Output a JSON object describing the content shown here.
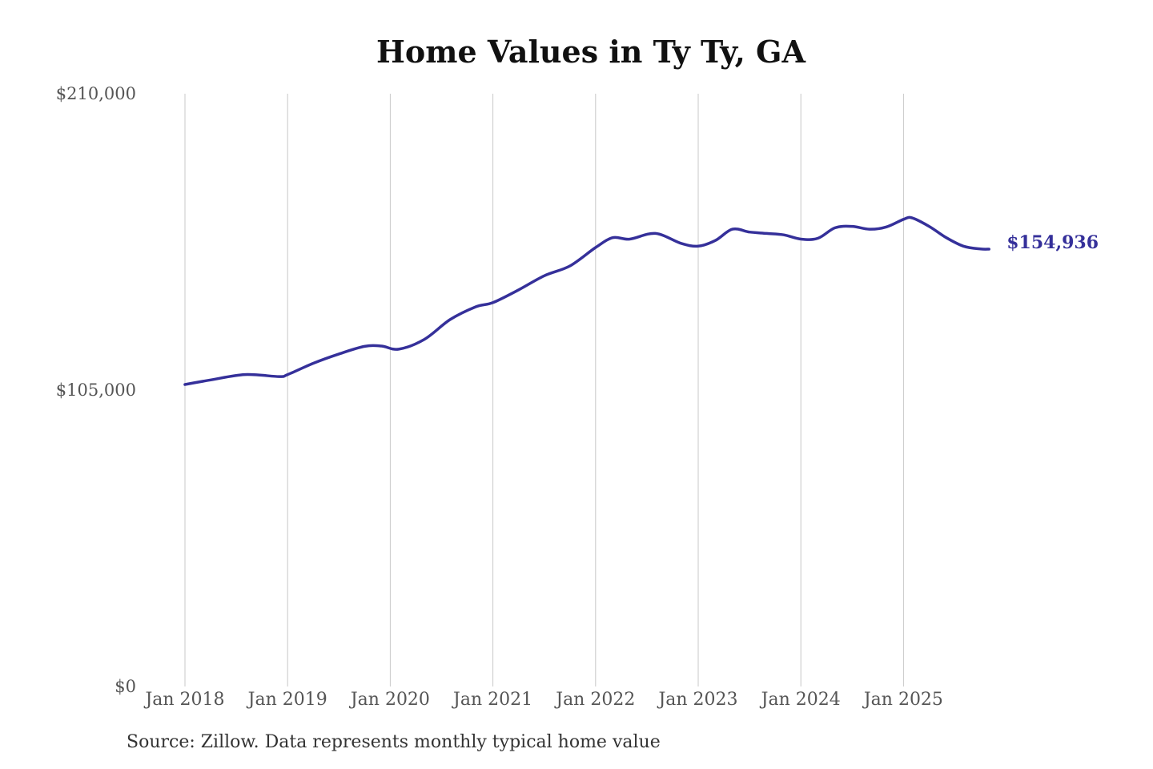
{
  "chart_data": {
    "type": "line",
    "title": "Home Values in Ty Ty, GA",
    "source": "Source: Zillow. Data represents monthly typical home value",
    "xlabel": "",
    "ylabel": "",
    "ylim": [
      0,
      210000
    ],
    "y_ticks": [
      {
        "value": 0,
        "label": "$0"
      },
      {
        "value": 105000,
        "label": "$105,000"
      },
      {
        "value": 210000,
        "label": "$210,000"
      }
    ],
    "x_ticks": [
      {
        "value": "2018-01",
        "label": "Jan 2018"
      },
      {
        "value": "2019-01",
        "label": "Jan 2019"
      },
      {
        "value": "2020-01",
        "label": "Jan 2020"
      },
      {
        "value": "2021-01",
        "label": "Jan 2021"
      },
      {
        "value": "2022-01",
        "label": "Jan 2022"
      },
      {
        "value": "2023-01",
        "label": "Jan 2023"
      },
      {
        "value": "2024-01",
        "label": "Jan 2024"
      },
      {
        "value": "2025-01",
        "label": "Jan 2025"
      }
    ],
    "grid": {
      "vertical": true,
      "horizontal": false
    },
    "line_color": "#35309A",
    "grid_color": "#c8c8c8",
    "end_label": "$154,936",
    "series": [
      {
        "x": [
          "2018-01",
          "2018-04",
          "2018-08",
          "2018-12",
          "2019-01",
          "2019-04",
          "2019-07",
          "2019-10",
          "2019-12",
          "2020-02",
          "2020-05",
          "2020-08",
          "2020-11",
          "2021-01",
          "2021-04",
          "2021-07",
          "2021-10",
          "2022-01",
          "2022-03",
          "2022-05",
          "2022-08",
          "2022-11",
          "2023-01",
          "2023-03",
          "2023-05",
          "2023-07",
          "2023-09",
          "2023-11",
          "2024-01",
          "2024-03",
          "2024-05",
          "2024-07",
          "2024-09",
          "2024-11",
          "2025-01",
          "2025-02",
          "2025-04",
          "2025-06",
          "2025-08",
          "2025-10",
          "2025-11"
        ],
        "y": [
          107000,
          108600,
          110500,
          109800,
          110500,
          114500,
          117800,
          120500,
          120600,
          119500,
          123000,
          130000,
          134500,
          136000,
          140500,
          145500,
          149000,
          155500,
          159000,
          158500,
          160500,
          157000,
          156000,
          158000,
          162000,
          161000,
          160500,
          160000,
          158500,
          158800,
          162500,
          163000,
          162000,
          162800,
          165500,
          166000,
          163000,
          159000,
          156000,
          155000,
          154936
        ]
      }
    ]
  }
}
